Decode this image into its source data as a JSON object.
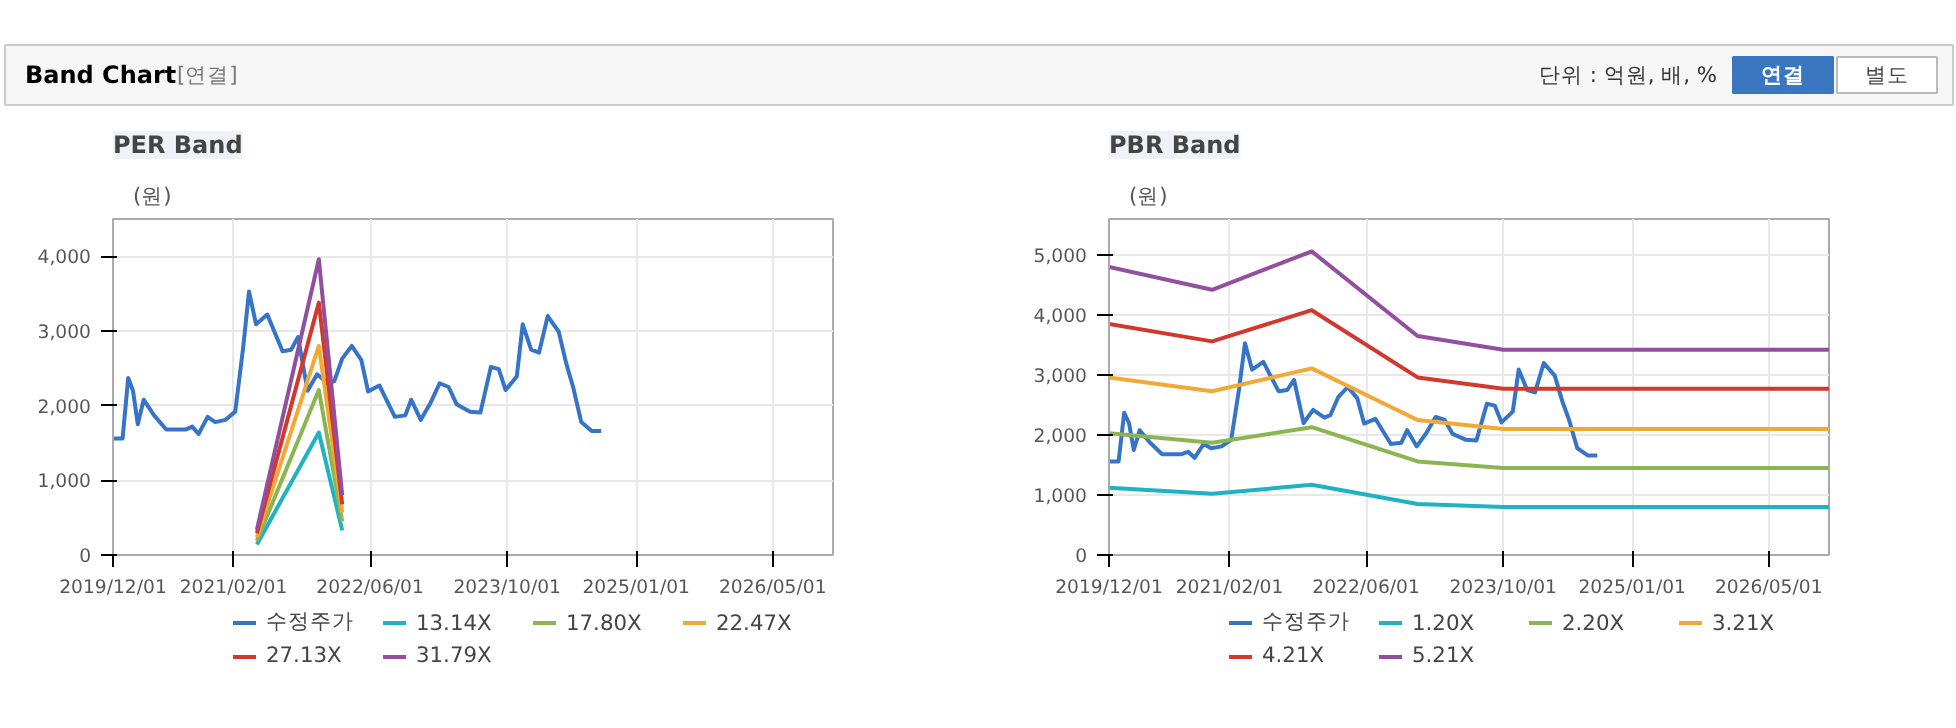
{
  "chart_data": [
    {
      "type": "other",
      "title": "Band Chart",
      "annotations": [
        "[연결]",
        "단위 : 억원, 배, %",
        "연결",
        "별도"
      ]
    },
    {
      "type": "line",
      "title": "PER Band",
      "ylabel": "(원)",
      "grid": true,
      "legend": "bottom",
      "xlim": [
        "2019-12-01",
        "2026-12-01"
      ],
      "ylim": [
        0,
        4500
      ],
      "xticks": [
        {
          "value": "2019-12-01",
          "label": "2019/12/01"
        },
        {
          "value": "2021-02-01",
          "label": "2021/02/01"
        },
        {
          "value": "2022-06-01",
          "label": "2022/06/01"
        },
        {
          "value": "2023-10-01",
          "label": "2023/10/01"
        },
        {
          "value": "2025-01-01",
          "label": "2025/01/01"
        },
        {
          "value": "2026-05-01",
          "label": "2026/05/01"
        }
      ],
      "yticks": [
        0,
        {
          "value": 1000,
          "label": "1,000"
        },
        {
          "value": 2000,
          "label": "2,000"
        },
        {
          "value": 3000,
          "label": "3,000"
        },
        {
          "value": 4000,
          "label": "4,000"
        }
      ],
      "series": [
        {
          "name": "수정주가",
          "color": "#3574c8",
          "x": [
            "2019-12-01",
            "2020-01-04",
            "2020-01-24",
            "2020-02-10",
            "2020-02-27",
            "2020-03-19",
            "2020-04-25",
            "2020-06-07",
            "2020-08-15",
            "2020-09-07",
            "2020-09-30",
            "2020-11-01",
            "2020-11-28",
            "2021-01-04",
            "2021-02-07",
            "2021-03-07",
            "2021-03-28",
            "2021-04-22",
            "2021-06-01",
            "2021-07-25",
            "2021-08-25",
            "2021-09-18",
            "2021-10-22",
            "2021-11-25",
            "2022-01-04",
            "2022-01-25",
            "2022-02-22",
            "2022-03-28",
            "2022-05-01",
            "2022-05-25",
            "2022-07-04",
            "2022-08-28",
            "2022-10-04",
            "2022-10-25",
            "2022-11-28",
            "2023-01-02",
            "2023-02-03",
            "2023-03-07",
            "2023-04-04",
            "2023-05-22",
            "2023-06-28",
            "2023-08-04",
            "2023-09-01",
            "2023-09-25",
            "2023-11-04",
            "2023-11-25",
            "2023-12-25",
            "2024-01-22",
            "2024-02-22",
            "2024-04-01",
            "2024-04-28",
            "2024-05-22",
            "2024-06-20",
            "2024-07-27",
            "2024-08-30"
          ],
          "values": [
            1560,
            1560,
            2370,
            2200,
            1750,
            2080,
            1870,
            1680,
            1680,
            1720,
            1620,
            1850,
            1780,
            1810,
            1920,
            2770,
            3530,
            3090,
            3220,
            2730,
            2750,
            2920,
            2200,
            2420,
            2290,
            2330,
            2630,
            2800,
            2610,
            2190,
            2270,
            1850,
            1870,
            2080,
            1810,
            2040,
            2300,
            2250,
            2020,
            1920,
            1910,
            2520,
            2490,
            2210,
            2390,
            3090,
            2750,
            2710,
            3200,
            2990,
            2560,
            2250,
            1780,
            1660,
            1660
          ]
        },
        {
          "name": "13.14X",
          "color": "#1fb3c1",
          "x": [
            "2021-04-25",
            "2021-12-01",
            "2022-02-22"
          ],
          "values": [
            140,
            1640,
            330
          ]
        },
        {
          "name": "17.80X",
          "color": "#8bb553",
          "x": [
            "2021-04-25",
            "2021-12-01",
            "2022-02-22"
          ],
          "values": [
            190,
            2210,
            450
          ]
        },
        {
          "name": "22.47X",
          "color": "#f2a934",
          "x": [
            "2021-04-25",
            "2021-12-01",
            "2022-02-22"
          ],
          "values": [
            240,
            2800,
            570
          ]
        },
        {
          "name": "27.13X",
          "color": "#d3382c",
          "x": [
            "2021-04-25",
            "2021-12-01",
            "2022-02-22"
          ],
          "values": [
            290,
            3380,
            680
          ]
        },
        {
          "name": "31.79X",
          "color": "#924f9e",
          "x": [
            "2021-04-25",
            "2021-12-01",
            "2022-02-22"
          ],
          "values": [
            340,
            3960,
            800
          ]
        }
      ]
    },
    {
      "type": "line",
      "title": "PBR Band",
      "ylabel": "(원)",
      "grid": true,
      "legend": "bottom",
      "xlim": [
        "2019-12-01",
        "2026-12-01"
      ],
      "ylim": [
        0,
        5600
      ],
      "xticks": [
        {
          "value": "2019-12-01",
          "label": "2019/12/01"
        },
        {
          "value": "2021-02-01",
          "label": "2021/02/01"
        },
        {
          "value": "2022-06-01",
          "label": "2022/06/01"
        },
        {
          "value": "2023-10-01",
          "label": "2023/10/01"
        },
        {
          "value": "2025-01-01",
          "label": "2025/01/01"
        },
        {
          "value": "2026-05-01",
          "label": "2026/05/01"
        }
      ],
      "yticks": [
        0,
        {
          "value": 1000,
          "label": "1,000"
        },
        {
          "value": 2000,
          "label": "2,000"
        },
        {
          "value": 3000,
          "label": "3,000"
        },
        {
          "value": 4000,
          "label": "4,000"
        },
        {
          "value": 5000,
          "label": "5,000"
        }
      ],
      "series": [
        {
          "name": "수정주가",
          "color": "#3574c8",
          "x": [
            "2019-12-01",
            "2020-01-04",
            "2020-01-24",
            "2020-02-10",
            "2020-02-27",
            "2020-03-19",
            "2020-04-25",
            "2020-06-07",
            "2020-08-15",
            "2020-09-07",
            "2020-09-30",
            "2020-11-01",
            "2020-11-28",
            "2021-01-04",
            "2021-02-07",
            "2021-03-07",
            "2021-03-28",
            "2021-04-22",
            "2021-06-01",
            "2021-07-25",
            "2021-08-25",
            "2021-09-18",
            "2021-10-22",
            "2021-11-25",
            "2022-01-04",
            "2022-01-25",
            "2022-02-22",
            "2022-03-28",
            "2022-05-01",
            "2022-05-25",
            "2022-07-04",
            "2022-08-28",
            "2022-10-04",
            "2022-10-25",
            "2022-11-28",
            "2023-01-02",
            "2023-02-03",
            "2023-03-07",
            "2023-04-04",
            "2023-05-22",
            "2023-06-28",
            "2023-08-04",
            "2023-09-01",
            "2023-09-25",
            "2023-11-04",
            "2023-11-25",
            "2023-12-25",
            "2024-01-22",
            "2024-02-22",
            "2024-04-01",
            "2024-04-28",
            "2024-05-22",
            "2024-06-20",
            "2024-07-27",
            "2024-08-30"
          ],
          "values": [
            1560,
            1560,
            2370,
            2200,
            1750,
            2080,
            1870,
            1680,
            1680,
            1720,
            1620,
            1850,
            1780,
            1810,
            1920,
            2770,
            3530,
            3090,
            3220,
            2730,
            2750,
            2920,
            2200,
            2420,
            2290,
            2330,
            2630,
            2800,
            2610,
            2190,
            2270,
            1850,
            1870,
            2080,
            1810,
            2040,
            2300,
            2250,
            2020,
            1920,
            1910,
            2520,
            2490,
            2210,
            2390,
            3090,
            2750,
            2710,
            3200,
            2990,
            2560,
            2250,
            1780,
            1660,
            1660
          ]
        },
        {
          "name": "1.20X",
          "color": "#1fb3c1",
          "x": [
            "2019-12-01",
            "2020-12-01",
            "2021-11-20",
            "2022-12-01",
            "2023-10-01",
            "2026-12-01"
          ],
          "values": [
            1120,
            1020,
            1170,
            850,
            800,
            800
          ]
        },
        {
          "name": "2.20X",
          "color": "#8bb553",
          "x": [
            "2019-12-01",
            "2020-12-01",
            "2021-11-20",
            "2022-12-01",
            "2023-10-01",
            "2026-12-01"
          ],
          "values": [
            2030,
            1870,
            2130,
            1560,
            1450,
            1450
          ]
        },
        {
          "name": "3.21X",
          "color": "#f2a934",
          "x": [
            "2019-12-01",
            "2020-12-01",
            "2021-11-20",
            "2022-12-01",
            "2023-10-01",
            "2026-12-01"
          ],
          "values": [
            2960,
            2730,
            3110,
            2250,
            2100,
            2100
          ]
        },
        {
          "name": "4.21X",
          "color": "#d3382c",
          "x": [
            "2019-12-01",
            "2020-12-01",
            "2021-11-20",
            "2022-12-01",
            "2023-10-01",
            "2026-12-01"
          ],
          "values": [
            3850,
            3560,
            4080,
            2960,
            2770,
            2770
          ]
        },
        {
          "name": "5.21X",
          "color": "#924f9e",
          "x": [
            "2019-12-01",
            "2020-12-01",
            "2021-11-20",
            "2022-12-01",
            "2023-10-01",
            "2026-12-01"
          ],
          "values": [
            4800,
            4420,
            5060,
            3650,
            3420,
            3420
          ]
        }
      ]
    }
  ]
}
